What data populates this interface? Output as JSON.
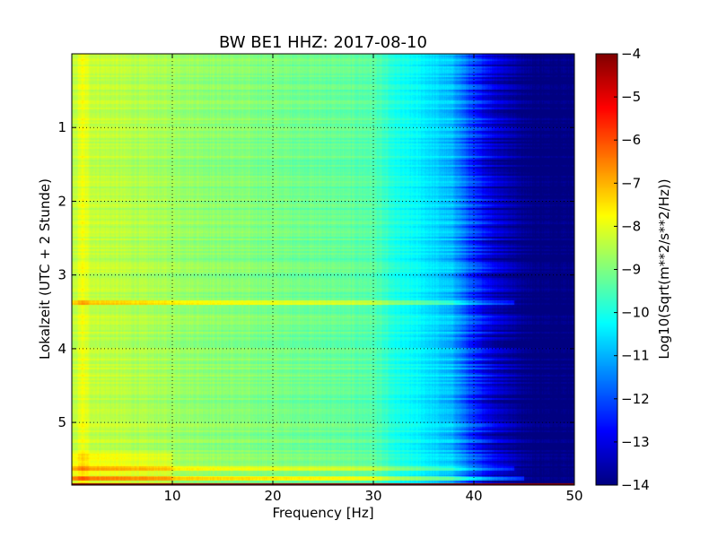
{
  "chart_data": {
    "type": "heatmap",
    "title": "BW BE1 HHZ: 2017-08-10",
    "xlabel": "Frequency [Hz]",
    "ylabel": "Lokalzeit (UTC + 2 Stunde)",
    "colorbar_label": "Log10(Sqrt(m**2/s**2/Hz))",
    "xlim": [
      0,
      50
    ],
    "ylim": [
      5.85,
      0
    ],
    "x_ticks": [
      10,
      20,
      30,
      40,
      50
    ],
    "y_ticks": [
      1,
      2,
      3,
      4,
      5
    ],
    "colorbar_range": [
      -14,
      -4
    ],
    "colorbar_ticks": [
      -4,
      -5,
      -6,
      -7,
      -8,
      -9,
      -10,
      -11,
      -12,
      -13,
      -14
    ],
    "colormap": "jet",
    "grid": true,
    "spectrum_profile": {
      "freq_hz": [
        0,
        1,
        2,
        4,
        8,
        15,
        25,
        30,
        32,
        35,
        38,
        40,
        42,
        44,
        46,
        50
      ],
      "value": [
        -8.6,
        -7.9,
        -8.3,
        -8.4,
        -8.6,
        -8.9,
        -9.2,
        -9.4,
        -10.0,
        -10.4,
        -11.0,
        -12.3,
        -13.2,
        -13.7,
        -14.0,
        -14.0
      ]
    },
    "features": [
      {
        "type": "horizontal_band",
        "time_h": 3.38,
        "offset": 1.1,
        "to_freq_hz": 44
      },
      {
        "type": "horizontal_band",
        "time_h": 5.62,
        "offset": 1.0,
        "to_freq_hz": 44
      },
      {
        "type": "horizontal_band",
        "time_h": 5.76,
        "offset": 1.3,
        "to_freq_hz": 45
      },
      {
        "type": "bottom_row",
        "time_h": 5.83,
        "value": -4.0
      }
    ]
  }
}
